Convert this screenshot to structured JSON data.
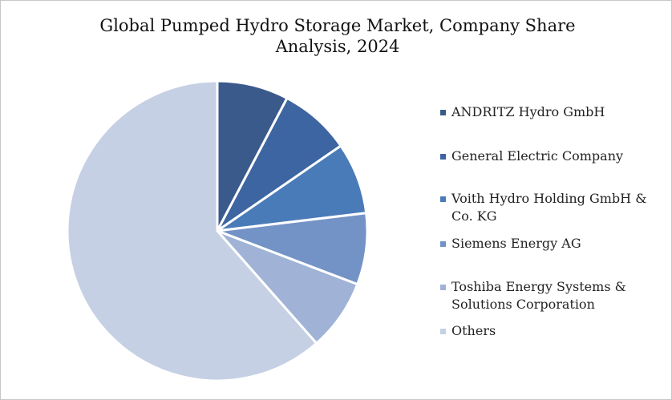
{
  "chart_data": {
    "type": "pie",
    "title": "Global Pumped Hydro Storage Market, Company Share Analysis, 2024",
    "categories": [
      "ANDRITZ Hydro GmbH",
      "General Electric Company",
      "Voith Hydro Holding GmbH & Co. KG",
      "Siemens Energy AG",
      "Toshiba Energy Systems & Solutions Corporation",
      "Others"
    ],
    "values": [
      7.7,
      7.7,
      7.7,
      7.7,
      7.7,
      61.5
    ],
    "colors": [
      "#3a5a8c",
      "#3d65a1",
      "#4a7bb9",
      "#7393c6",
      "#a0b3d6",
      "#c5d0e4"
    ]
  }
}
